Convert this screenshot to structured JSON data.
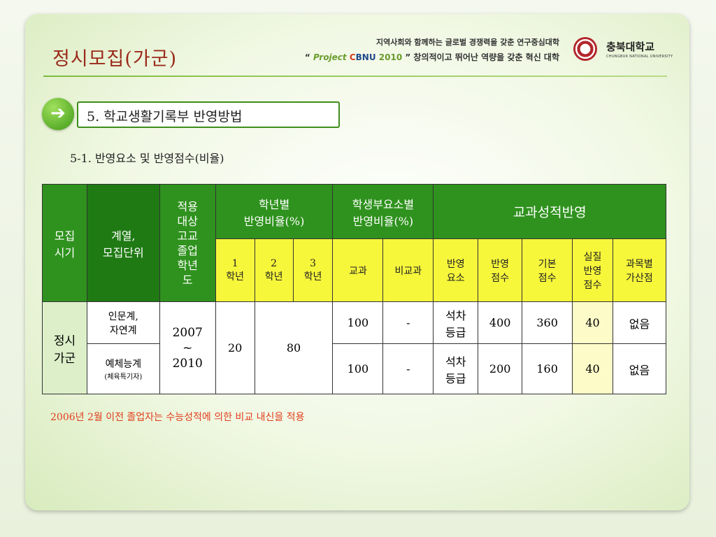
{
  "header": {
    "title": "정시모집(가군)",
    "slogan_line1": "지역사회와 함께하는 글로벌 경쟁력을 갖춘 연구중심대학",
    "slogan_open": "“ ",
    "slogan_project": "Project ",
    "slogan_c": "C",
    "slogan_bnu": "BNU",
    "slogan_year": " 2010",
    "slogan_close": " ”",
    "slogan_rest": " 창의적이고 뛰어난 역량을 갖춘 혁신 대학",
    "university_kr": "충북대학교",
    "university_en": "CHUNGBUK NATIONAL UNIVERSITY"
  },
  "section": {
    "arrow": "➔",
    "title": "5. 학교생활기록부 반영방법",
    "subtitle": "5-1. 반영요소 및 반영점수(비율)"
  },
  "table": {
    "h_period": "모집\n시기",
    "h_field": "계열,\n모집단위",
    "h_target": "적용\n대상\n고교\n졸업\n학년\n도",
    "h_grade_ratio": "학년별\n반영비율(%)",
    "h_type_ratio": "학생부요소별\n반영비율(%)",
    "h_subject": "교과성적반영",
    "sub_g1": "1\n학년",
    "sub_g2": "2\n학년",
    "sub_g3": "3\n학년",
    "sub_course": "교과",
    "sub_noncourse": "비교과",
    "sub_factor": "반영\n요소",
    "sub_score": "반영\n점수",
    "sub_base": "기본\n점수",
    "sub_actual": "실질\n반영\n점수",
    "sub_bonus": "과목별\n가산점",
    "period": "정시\n가군",
    "target_years": "2007\n~\n2010",
    "grade1": "20",
    "grade23": "80",
    "rows": [
      {
        "field": "인문계,\n자연계",
        "field_sub": "",
        "course": "100",
        "noncourse": "-",
        "factor": "석차\n등급",
        "score": "400",
        "base": "360",
        "actual": "40",
        "bonus": "없음"
      },
      {
        "field": "예체능계",
        "field_sub": "(체육특기자)",
        "course": "100",
        "noncourse": "-",
        "factor": "석차\n등급",
        "score": "200",
        "base": "160",
        "actual": "40",
        "bonus": "없음"
      }
    ]
  },
  "note": "2006년 2월 이전 졸업자는 수능성적에 의한 비교 내신을 적용",
  "colors": {
    "accent_green": "#2f921e",
    "yellow": "#f6f63b",
    "title_red": "#9a2a1a",
    "note_red": "#e23c1c"
  }
}
